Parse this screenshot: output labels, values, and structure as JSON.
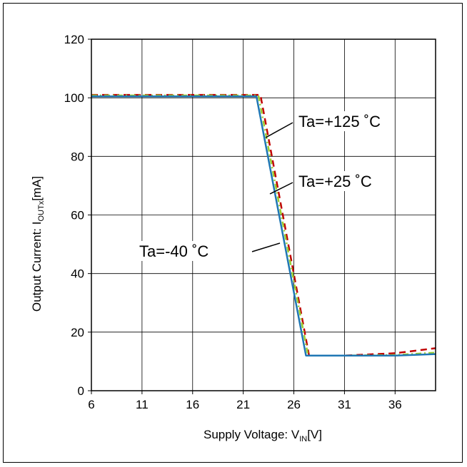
{
  "chart_data": {
    "type": "line",
    "title": "",
    "xlabel": {
      "main": "Supply Voltage: V",
      "sub": "IN",
      "suffix": "[V]"
    },
    "ylabel": {
      "main": "Output Current: I",
      "sub": "OUTx",
      "suffix": "[mA]"
    },
    "xlim": [
      6,
      40
    ],
    "ylim": [
      0,
      120
    ],
    "xticks": [
      6,
      11,
      16,
      21,
      26,
      31,
      36
    ],
    "yticks": [
      0,
      20,
      40,
      60,
      80,
      100,
      120
    ],
    "grid": true,
    "colors": {
      "minus40": "#1f77b4",
      "plus25": "#9acd32",
      "plus125": "#c00000"
    },
    "series": [
      {
        "name": "Ta=-40 °C",
        "style": "solid",
        "color": "#1f77b4",
        "x": [
          6,
          22.3,
          27.2,
          31,
          36,
          40
        ],
        "y": [
          100.5,
          100.5,
          12,
          12,
          12,
          12.5
        ]
      },
      {
        "name": "Ta=+25 °C",
        "style": "dashdot",
        "color": "#9acd32",
        "x": [
          6,
          22.5,
          27.4,
          31,
          36,
          40
        ],
        "y": [
          100.8,
          100.8,
          12,
          12,
          12.2,
          13
        ]
      },
      {
        "name": "Ta=+125 °C",
        "style": "dashed",
        "color": "#c00000",
        "x": [
          6,
          22.7,
          27.5,
          31,
          36,
          40
        ],
        "y": [
          101,
          101,
          12,
          12,
          12.8,
          14.5
        ]
      }
    ],
    "annotations": [
      {
        "text": "Ta=+125 ˚C",
        "series": 2
      },
      {
        "text": "Ta=+25 ˚C",
        "series": 1
      },
      {
        "text": "Ta=-40 ˚C",
        "series": 0
      }
    ]
  }
}
